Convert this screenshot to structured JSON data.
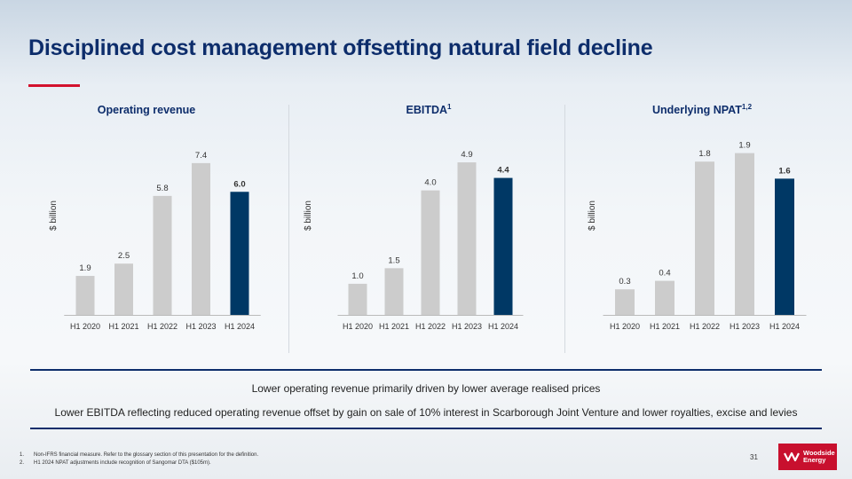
{
  "page": {
    "title": "Disciplined cost management offsetting natural field decline",
    "page_number": "31"
  },
  "messages": [
    "Lower operating revenue primarily driven by lower average realised prices",
    "Lower EBITDA reflecting reduced operating revenue offset by gain on sale of 10% interest in Scarborough Joint Venture and lower royalties, excise and levies"
  ],
  "footnotes": [
    {
      "num": "1.",
      "text": "Non-IFRS financial measure. Refer to the glossary section of this presentation for the definition."
    },
    {
      "num": "2.",
      "text": "H1 2024 NPAT adjustments include recognition of Sangomar DTA ($105m)."
    }
  ],
  "logo": {
    "line1": "Woodside",
    "line2": "Energy"
  },
  "colors": {
    "highlight_bar": "#003865",
    "history_bar": "#cccccc",
    "title": "#0d2d6b",
    "accent": "#d3122e"
  },
  "chart_data": [
    {
      "type": "bar",
      "title": "Operating revenue",
      "title_sup": "",
      "ylabel": "$ billion",
      "categories": [
        "H1 2020",
        "H1 2021",
        "H1 2022",
        "H1 2023",
        "H1 2024"
      ],
      "values": [
        1.9,
        2.5,
        5.8,
        7.4,
        6.0
      ],
      "labels": [
        "1.9",
        "2.5",
        "5.8",
        "7.4",
        "6.0"
      ],
      "highlight_index": 4,
      "ylim": [
        0,
        8.0
      ]
    },
    {
      "type": "bar",
      "title": "EBITDA",
      "title_sup": "1",
      "ylabel": "$ billion",
      "categories": [
        "H1 2020",
        "H1 2021",
        "H1 2022",
        "H1 2023",
        "H1 2024"
      ],
      "values": [
        1.0,
        1.5,
        4.0,
        4.9,
        4.4
      ],
      "labels": [
        "1.0",
        "1.5",
        "4.0",
        "4.9",
        "4.4"
      ],
      "highlight_index": 4,
      "ylim": [
        0,
        5.3
      ]
    },
    {
      "type": "bar",
      "title": "Underlying NPAT",
      "title_sup": "1,2",
      "ylabel": "$ billion",
      "categories": [
        "H1 2020",
        "H1 2021",
        "H1 2022",
        "H1 2023",
        "H1 2024"
      ],
      "values": [
        0.3,
        0.4,
        1.8,
        1.9,
        1.6
      ],
      "labels": [
        "0.3",
        "0.4",
        "1.8",
        "1.9",
        "1.6"
      ],
      "highlight_index": 4,
      "ylim": [
        0,
        2.0
      ]
    }
  ]
}
